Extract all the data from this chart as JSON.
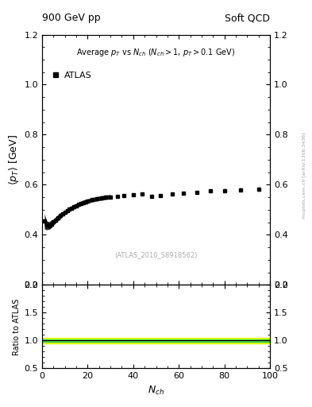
{
  "title_left": "900 GeV pp",
  "title_right": "Soft QCD",
  "ylabel_main": "$\\langle p_T \\rangle$ [GeV]",
  "ylabel_ratio": "Ratio to ATLAS",
  "xlabel": "$N_{ch}$",
  "annotation_main": "Average $p_T$ vs $N_{ch}$ ($N_{ch} > 1$, $p_T > 0.1$ GeV)",
  "legend_label": "ATLAS",
  "watermark": "(ATLAS_2010_S8918562)",
  "side_label": "mcplots.cern.ch [arXiv:1306.3436]",
  "ylim_main": [
    0.2,
    1.2
  ],
  "ylim_ratio": [
    0.5,
    2.0
  ],
  "xlim": [
    0,
    100
  ],
  "yticks_main": [
    0.2,
    0.4,
    0.6,
    0.8,
    1.0,
    1.2
  ],
  "yticks_ratio": [
    0.5,
    1.0,
    1.5,
    2.0
  ],
  "data_x": [
    1,
    2,
    3,
    4,
    5,
    6,
    7,
    8,
    9,
    10,
    11,
    12,
    13,
    14,
    15,
    16,
    17,
    18,
    19,
    20,
    22,
    24,
    26,
    28,
    30,
    33,
    36,
    40,
    44,
    48,
    52,
    57,
    62,
    68,
    74,
    80,
    87,
    95
  ],
  "data_y": [
    0.454,
    0.438,
    0.437,
    0.443,
    0.451,
    0.46,
    0.468,
    0.476,
    0.483,
    0.49,
    0.496,
    0.502,
    0.507,
    0.512,
    0.517,
    0.521,
    0.525,
    0.529,
    0.532,
    0.535,
    0.54,
    0.544,
    0.547,
    0.55,
    0.552,
    0.555,
    0.558,
    0.56,
    0.562,
    0.555,
    0.558,
    0.562,
    0.565,
    0.57,
    0.575,
    0.577,
    0.58,
    0.583
  ],
  "data_yerr": [
    0.01,
    0.006,
    0.005,
    0.005,
    0.004,
    0.004,
    0.004,
    0.004,
    0.003,
    0.003,
    0.003,
    0.003,
    0.003,
    0.003,
    0.003,
    0.003,
    0.003,
    0.003,
    0.003,
    0.003,
    0.003,
    0.003,
    0.003,
    0.003,
    0.003,
    0.003,
    0.003,
    0.003,
    0.004,
    0.004,
    0.004,
    0.005,
    0.005,
    0.006,
    0.006,
    0.007,
    0.008,
    0.01
  ],
  "marker_color": "black",
  "marker_style": "s",
  "marker_size": 3,
  "ratio_line_y": 1.0,
  "ratio_band_green": [
    0.975,
    1.025
  ],
  "ratio_band_yellow": [
    0.955,
    1.045
  ],
  "green_color": "#44cc44",
  "yellow_color": "#ddff00",
  "background_color": "white"
}
